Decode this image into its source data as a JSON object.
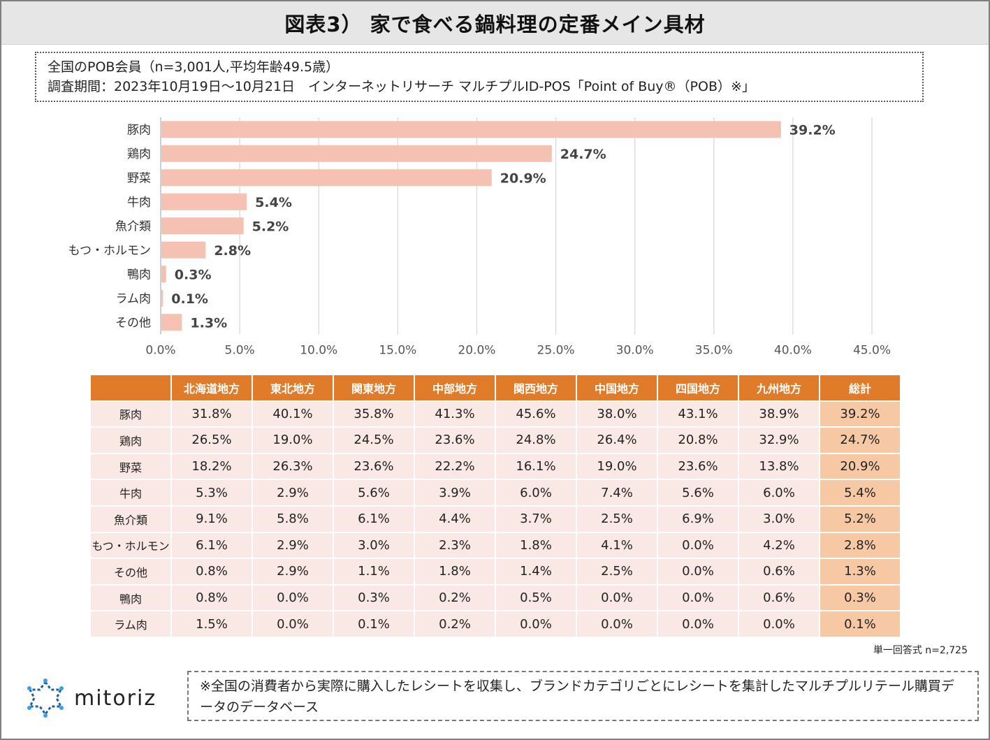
{
  "title": "図表3） 家で食べる鍋料理の定番メイン具材",
  "info": {
    "line1": "全国のPOB会員（n=3,001人,平均年齢49.5歳）",
    "line2": "調査期間：2023年10月19日～10月21日　インターネットリサーチ マルチプルID-POS「Point of Buy®（POB）※」"
  },
  "chart_data": {
    "type": "bar",
    "orientation": "horizontal",
    "categories": [
      "豚肉",
      "鶏肉",
      "野菜",
      "牛肉",
      "魚介類",
      "もつ・ホルモン",
      "鴨肉",
      "ラム肉",
      "その他"
    ],
    "values": [
      39.2,
      24.7,
      20.9,
      5.4,
      5.2,
      2.8,
      0.3,
      0.1,
      1.3
    ],
    "value_labels": [
      "39.2%",
      "24.7%",
      "20.9%",
      "5.4%",
      "5.2%",
      "2.8%",
      "0.3%",
      "0.1%",
      "1.3%"
    ],
    "xlim": [
      0,
      45
    ],
    "xticks": [
      0,
      5,
      10,
      15,
      20,
      25,
      30,
      35,
      40,
      45
    ],
    "xtick_labels": [
      "0.0%",
      "5.0%",
      "10.0%",
      "15.0%",
      "20.0%",
      "25.0%",
      "30.0%",
      "35.0%",
      "40.0%",
      "45.0%"
    ],
    "bar_color": "#f4c1b2",
    "grid": true
  },
  "table": {
    "headers": [
      "北海道地方",
      "東北地方",
      "関東地方",
      "中部地方",
      "関西地方",
      "中国地方",
      "四国地方",
      "九州地方",
      "総計"
    ],
    "rows": [
      {
        "label": "豚肉",
        "values": [
          "31.8%",
          "40.1%",
          "35.8%",
          "41.3%",
          "45.6%",
          "38.0%",
          "43.1%",
          "38.9%",
          "39.2%"
        ]
      },
      {
        "label": "鶏肉",
        "values": [
          "26.5%",
          "19.0%",
          "24.5%",
          "23.6%",
          "24.8%",
          "26.4%",
          "20.8%",
          "32.9%",
          "24.7%"
        ]
      },
      {
        "label": "野菜",
        "values": [
          "18.2%",
          "26.3%",
          "23.6%",
          "22.2%",
          "16.1%",
          "19.0%",
          "23.6%",
          "13.8%",
          "20.9%"
        ]
      },
      {
        "label": "牛肉",
        "values": [
          "5.3%",
          "2.9%",
          "5.6%",
          "3.9%",
          "6.0%",
          "7.4%",
          "5.6%",
          "6.0%",
          "5.4%"
        ]
      },
      {
        "label": "魚介類",
        "values": [
          "9.1%",
          "5.8%",
          "6.1%",
          "4.4%",
          "3.7%",
          "2.5%",
          "6.9%",
          "3.0%",
          "5.2%"
        ]
      },
      {
        "label": "もつ・ホルモン",
        "values": [
          "6.1%",
          "2.9%",
          "3.0%",
          "2.3%",
          "1.8%",
          "4.1%",
          "0.0%",
          "4.2%",
          "2.8%"
        ]
      },
      {
        "label": "その他",
        "values": [
          "0.8%",
          "2.9%",
          "1.1%",
          "1.8%",
          "1.4%",
          "2.5%",
          "0.0%",
          "0.6%",
          "1.3%"
        ]
      },
      {
        "label": "鴨肉",
        "values": [
          "0.8%",
          "0.0%",
          "0.3%",
          "0.2%",
          "0.5%",
          "0.0%",
          "0.0%",
          "0.6%",
          "0.3%"
        ]
      },
      {
        "label": "ラム肉",
        "values": [
          "1.5%",
          "0.0%",
          "0.1%",
          "0.2%",
          "0.0%",
          "0.0%",
          "0.0%",
          "0.0%",
          "0.1%"
        ]
      }
    ]
  },
  "sample_note": "単一回答式 n=2,725",
  "logo": {
    "text": "mitoriz",
    "icon": "mitoriz-logo-icon"
  },
  "footnote": "※全国の消費者から実際に購入したレシートを収集し、ブランドカテゴリごとにレシートを集計したマルチプルリテール購買データのデータベース",
  "colors": {
    "header": "#e07b2a",
    "cell": "#fae8e4",
    "total": "#f7c8a4",
    "bar": "#f4c1b2",
    "logo_blue": "#1f5fa8"
  }
}
